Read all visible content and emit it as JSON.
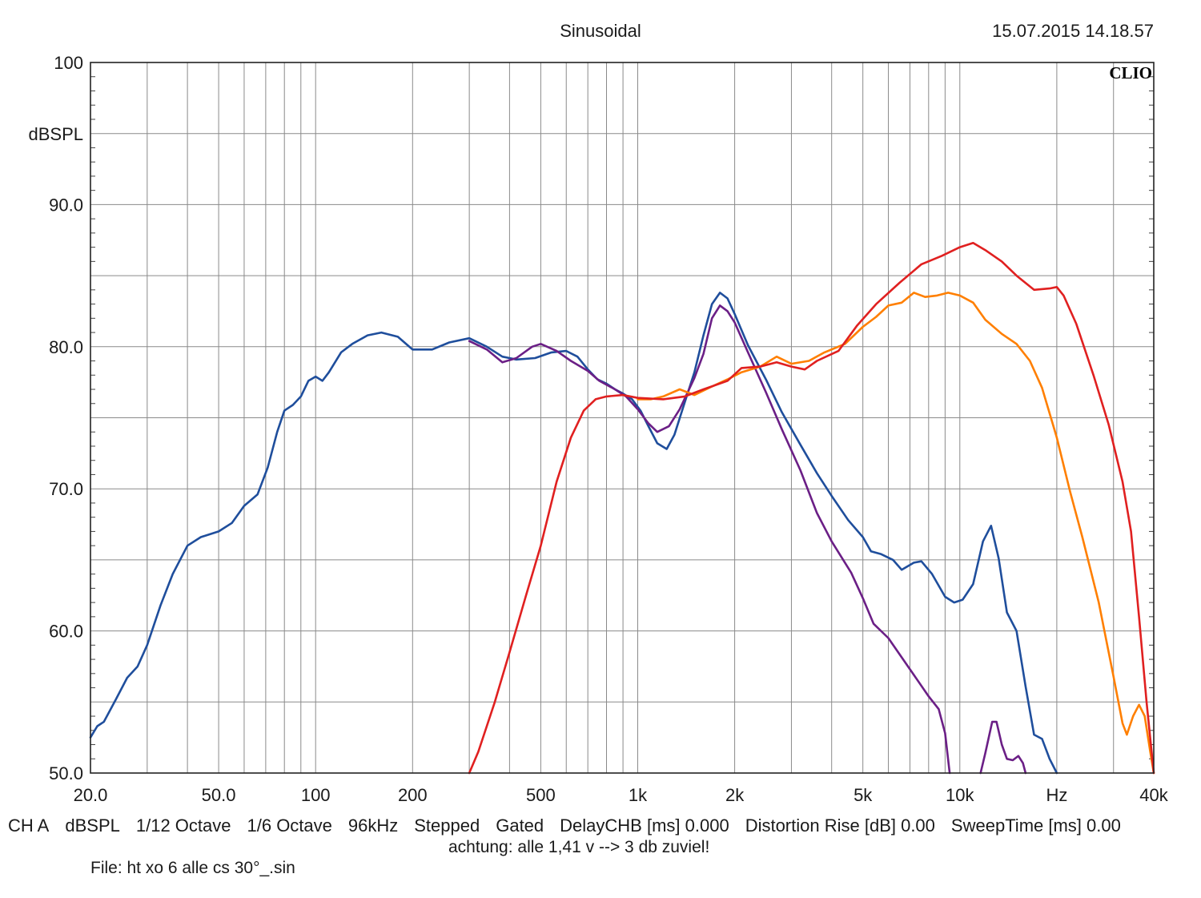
{
  "header": {
    "title": "Sinusoidal",
    "datetime": "15.07.2015 14.18.57",
    "logo": "CLIO"
  },
  "footer": {
    "settings": [
      "CH A",
      "dBSPL",
      "1/12 Octave",
      "1/6 Octave",
      "96kHz",
      "Stepped",
      "Gated",
      "DelayCHB [ms] 0.000",
      "Distortion Rise [dB] 0.00",
      "SweepTime [ms] 0.00"
    ],
    "note": "achtung: alle 1,41 v --> 3 db zuviel!",
    "file": "File: ht xo 6 alle cs 30°_.sin"
  },
  "chart_data": {
    "type": "line",
    "title": "Sinusoidal",
    "xscale": "log",
    "xlim": [
      20,
      40000
    ],
    "ylim": [
      50,
      100
    ],
    "ylabel": "dBSPL",
    "xunit": "Hz",
    "grid": true,
    "x_tick_labels": [
      {
        "v": 20,
        "label": "20.0"
      },
      {
        "v": 50,
        "label": "50.0"
      },
      {
        "v": 100,
        "label": "100"
      },
      {
        "v": 200,
        "label": "200"
      },
      {
        "v": 500,
        "label": "500"
      },
      {
        "v": 1000,
        "label": "1k"
      },
      {
        "v": 2000,
        "label": "2k"
      },
      {
        "v": 5000,
        "label": "5k"
      },
      {
        "v": 10000,
        "label": "10k"
      },
      {
        "v": 20000,
        "label": "Hz"
      },
      {
        "v": 40000,
        "label": "40k"
      }
    ],
    "y_tick_labels": [
      {
        "v": 100,
        "label": "100"
      },
      {
        "v": 90,
        "label": "90.0"
      },
      {
        "v": 80,
        "label": "80.0"
      },
      {
        "v": 70,
        "label": "70.0"
      },
      {
        "v": 60,
        "label": "60.0"
      },
      {
        "v": 50,
        "label": "50.0"
      }
    ],
    "series": [
      {
        "color": "#1f4e9c",
        "points": [
          [
            20,
            52.5
          ],
          [
            21,
            53.3
          ],
          [
            22,
            53.6
          ],
          [
            24,
            55.2
          ],
          [
            26,
            56.7
          ],
          [
            28,
            57.5
          ],
          [
            30,
            59
          ],
          [
            33,
            61.8
          ],
          [
            36,
            64
          ],
          [
            40,
            66
          ],
          [
            44,
            66.6
          ],
          [
            50,
            67
          ],
          [
            55,
            67.6
          ],
          [
            60,
            68.8
          ],
          [
            66,
            69.6
          ],
          [
            71,
            71.5
          ],
          [
            76,
            74
          ],
          [
            80,
            75.5
          ],
          [
            85,
            75.9
          ],
          [
            90,
            76.5
          ],
          [
            95,
            77.6
          ],
          [
            100,
            77.9
          ],
          [
            105,
            77.6
          ],
          [
            110,
            78.2
          ],
          [
            120,
            79.6
          ],
          [
            130,
            80.2
          ],
          [
            145,
            80.8
          ],
          [
            160,
            81
          ],
          [
            180,
            80.7
          ],
          [
            200,
            79.8
          ],
          [
            230,
            79.8
          ],
          [
            260,
            80.3
          ],
          [
            300,
            80.6
          ],
          [
            340,
            80
          ],
          [
            380,
            79.3
          ],
          [
            420,
            79.1
          ],
          [
            480,
            79.2
          ],
          [
            540,
            79.6
          ],
          [
            600,
            79.7
          ],
          [
            650,
            79.3
          ],
          [
            700,
            78.4
          ],
          [
            750,
            77.7
          ],
          [
            800,
            77.4
          ],
          [
            850,
            77
          ],
          [
            900,
            76.7
          ],
          [
            960,
            76.3
          ],
          [
            1020,
            75.5
          ],
          [
            1080,
            74.4
          ],
          [
            1150,
            73.2
          ],
          [
            1230,
            72.8
          ],
          [
            1300,
            73.8
          ],
          [
            1400,
            76.1
          ],
          [
            1500,
            78.2
          ],
          [
            1600,
            80.8
          ],
          [
            1700,
            83
          ],
          [
            1800,
            83.8
          ],
          [
            1900,
            83.4
          ],
          [
            2000,
            82.3
          ],
          [
            2200,
            80.1
          ],
          [
            2500,
            77.7
          ],
          [
            2800,
            75.4
          ],
          [
            3200,
            73.1
          ],
          [
            3600,
            71.1
          ],
          [
            4000,
            69.5
          ],
          [
            4500,
            67.8
          ],
          [
            5000,
            66.6
          ],
          [
            5300,
            65.6
          ],
          [
            5700,
            65.4
          ],
          [
            6200,
            65
          ],
          [
            6600,
            64.3
          ],
          [
            7200,
            64.8
          ],
          [
            7600,
            64.9
          ],
          [
            8200,
            64
          ],
          [
            9000,
            62.4
          ],
          [
            9600,
            62
          ],
          [
            10200,
            62.2
          ],
          [
            11000,
            63.3
          ],
          [
            11800,
            66.3
          ],
          [
            12500,
            67.4
          ],
          [
            13200,
            65.1
          ],
          [
            14000,
            61.3
          ],
          [
            15000,
            60
          ],
          [
            16000,
            56.1
          ],
          [
            17000,
            52.7
          ],
          [
            18000,
            52.4
          ],
          [
            19000,
            51
          ],
          [
            20000,
            50
          ]
        ]
      },
      {
        "color": "#6b1f86",
        "points": [
          [
            300,
            80.4
          ],
          [
            340,
            79.8
          ],
          [
            380,
            78.9
          ],
          [
            420,
            79.2
          ],
          [
            470,
            80
          ],
          [
            500,
            80.2
          ],
          [
            560,
            79.7
          ],
          [
            620,
            79
          ],
          [
            700,
            78.3
          ],
          [
            760,
            77.6
          ],
          [
            850,
            77
          ],
          [
            920,
            76.5
          ],
          [
            1000,
            75.6
          ],
          [
            1080,
            74.6
          ],
          [
            1150,
            74
          ],
          [
            1250,
            74.4
          ],
          [
            1350,
            75.6
          ],
          [
            1500,
            77.8
          ],
          [
            1600,
            79.5
          ],
          [
            1700,
            82
          ],
          [
            1800,
            82.9
          ],
          [
            1900,
            82.5
          ],
          [
            2000,
            81.7
          ],
          [
            2200,
            79.6
          ],
          [
            2500,
            76.8
          ],
          [
            2800,
            74.2
          ],
          [
            3200,
            71.3
          ],
          [
            3600,
            68.3
          ],
          [
            4000,
            66.3
          ],
          [
            4600,
            64.1
          ],
          [
            5000,
            62.3
          ],
          [
            5400,
            60.5
          ],
          [
            6000,
            59.5
          ],
          [
            7000,
            57.3
          ],
          [
            8000,
            55.4
          ],
          [
            8600,
            54.5
          ],
          [
            9000,
            52.8
          ],
          [
            9300,
            50
          ]
        ]
      },
      {
        "color": "#6b1f86",
        "points": [
          [
            11600,
            50
          ],
          [
            12000,
            51.4
          ],
          [
            12600,
            53.6
          ],
          [
            13000,
            53.6
          ],
          [
            13500,
            52
          ],
          [
            14000,
            51
          ],
          [
            14600,
            50.9
          ],
          [
            15200,
            51.2
          ],
          [
            15700,
            50.7
          ],
          [
            16000,
            50
          ]
        ]
      },
      {
        "color": "#ff7f00",
        "points": [
          [
            1000,
            76.3
          ],
          [
            1100,
            76.3
          ],
          [
            1200,
            76.5
          ],
          [
            1350,
            77
          ],
          [
            1500,
            76.6
          ],
          [
            1700,
            77.2
          ],
          [
            1900,
            77.7
          ],
          [
            2100,
            78.2
          ],
          [
            2400,
            78.6
          ],
          [
            2700,
            79.3
          ],
          [
            3000,
            78.8
          ],
          [
            3400,
            79
          ],
          [
            3800,
            79.6
          ],
          [
            4400,
            80.2
          ],
          [
            5000,
            81.4
          ],
          [
            5500,
            82.1
          ],
          [
            6000,
            82.9
          ],
          [
            6600,
            83.1
          ],
          [
            7200,
            83.8
          ],
          [
            7800,
            83.5
          ],
          [
            8500,
            83.6
          ],
          [
            9200,
            83.8
          ],
          [
            10000,
            83.6
          ],
          [
            11000,
            83.1
          ],
          [
            12000,
            81.9
          ],
          [
            13500,
            80.9
          ],
          [
            15000,
            80.2
          ],
          [
            16500,
            79
          ],
          [
            18000,
            77.1
          ],
          [
            20000,
            73.6
          ],
          [
            22000,
            69.8
          ],
          [
            24000,
            66.6
          ],
          [
            27000,
            62
          ],
          [
            30000,
            56.8
          ],
          [
            32000,
            53.5
          ],
          [
            33000,
            52.7
          ],
          [
            34500,
            54
          ],
          [
            36000,
            54.8
          ],
          [
            37500,
            54
          ],
          [
            39000,
            51.5
          ],
          [
            40000,
            50
          ]
        ]
      },
      {
        "color": "#e02020",
        "points": [
          [
            300,
            50
          ],
          [
            320,
            51.5
          ],
          [
            360,
            55
          ],
          [
            400,
            58.5
          ],
          [
            450,
            62.5
          ],
          [
            500,
            66
          ],
          [
            560,
            70.5
          ],
          [
            620,
            73.6
          ],
          [
            680,
            75.5
          ],
          [
            740,
            76.3
          ],
          [
            800,
            76.5
          ],
          [
            900,
            76.6
          ],
          [
            1000,
            76.4
          ],
          [
            1200,
            76.3
          ],
          [
            1400,
            76.5
          ],
          [
            1600,
            77
          ],
          [
            1900,
            77.6
          ],
          [
            2100,
            78.5
          ],
          [
            2400,
            78.6
          ],
          [
            2700,
            78.9
          ],
          [
            3000,
            78.6
          ],
          [
            3300,
            78.4
          ],
          [
            3600,
            79
          ],
          [
            4200,
            79.7
          ],
          [
            4800,
            81.5
          ],
          [
            5500,
            83
          ],
          [
            6500,
            84.5
          ],
          [
            7600,
            85.8
          ],
          [
            8800,
            86.4
          ],
          [
            10000,
            87
          ],
          [
            11000,
            87.3
          ],
          [
            12000,
            86.8
          ],
          [
            13500,
            86
          ],
          [
            15000,
            85
          ],
          [
            17000,
            84
          ],
          [
            19000,
            84.1
          ],
          [
            20000,
            84.2
          ],
          [
            21000,
            83.6
          ],
          [
            23000,
            81.6
          ],
          [
            26000,
            78
          ],
          [
            29000,
            74.5
          ],
          [
            32000,
            70.5
          ],
          [
            34000,
            67
          ],
          [
            36000,
            61
          ],
          [
            38000,
            55
          ],
          [
            40000,
            50
          ]
        ]
      }
    ]
  }
}
